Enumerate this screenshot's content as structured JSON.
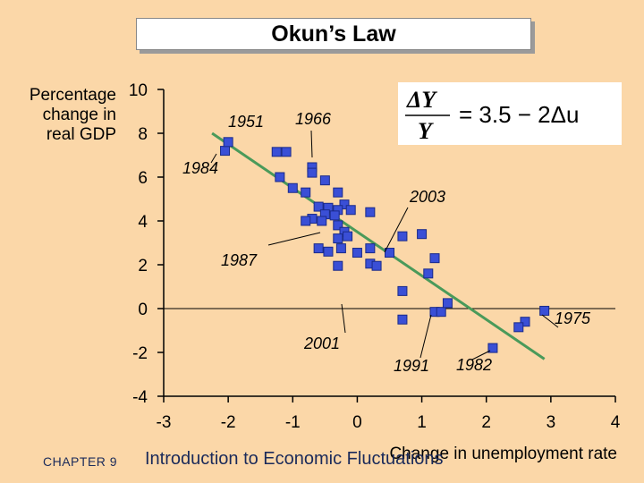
{
  "slide": {
    "title": "Okun’s Law",
    "footer_chapter": "CHAPTER 9",
    "footer_course": "Introduction to Economic Fluctuations",
    "colors": {
      "background": "#fbd7a8",
      "points": "#3a4fd6",
      "fit_line": "#4a9a5a"
    }
  },
  "equation": {
    "lhs_num": "ΔY",
    "lhs_den": "Y",
    "rhs": "= 3.5 − 2Δu"
  },
  "chart_data": {
    "type": "scatter",
    "title": "Okun’s Law",
    "xlabel": "Change in unemployment rate",
    "ylabel_lines": [
      "Percentage",
      "change in",
      "real GDP"
    ],
    "xlim": [
      -3,
      4
    ],
    "ylim": [
      -4,
      10
    ],
    "x_ticks": [
      "-3",
      "-2",
      "-1",
      "0",
      "1",
      "2",
      "3",
      "4"
    ],
    "y_ticks": [
      "10",
      "8",
      "6",
      "4",
      "2",
      "0",
      "-2",
      "-4"
    ],
    "fit_line": {
      "intercept": 3.5,
      "slope": -2,
      "x_range": [
        -2.25,
        2.9
      ]
    },
    "points": [
      [
        -2.05,
        7.2
      ],
      [
        -2.0,
        7.6
      ],
      [
        -1.25,
        7.15
      ],
      [
        -1.1,
        7.15
      ],
      [
        -0.7,
        6.45
      ],
      [
        -0.7,
        6.2
      ],
      [
        -1.2,
        6.0
      ],
      [
        -0.5,
        5.85
      ],
      [
        -1.0,
        5.5
      ],
      [
        -0.8,
        5.3
      ],
      [
        -0.3,
        5.3
      ],
      [
        -0.6,
        4.65
      ],
      [
        -0.2,
        4.75
      ],
      [
        -0.45,
        4.6
      ],
      [
        -0.3,
        4.5
      ],
      [
        -0.1,
        4.5
      ],
      [
        0.2,
        4.4
      ],
      [
        -0.5,
        4.3
      ],
      [
        -0.35,
        4.25
      ],
      [
        -0.7,
        4.1
      ],
      [
        -0.8,
        4.0
      ],
      [
        -0.55,
        4.0
      ],
      [
        -0.3,
        3.8
      ],
      [
        -0.2,
        3.5
      ],
      [
        -0.15,
        3.3
      ],
      [
        -0.3,
        3.2
      ],
      [
        0.7,
        3.3
      ],
      [
        1.0,
        3.4
      ],
      [
        -0.6,
        2.75
      ],
      [
        -0.45,
        2.6
      ],
      [
        -0.25,
        2.75
      ],
      [
        0.0,
        2.55
      ],
      [
        0.2,
        2.75
      ],
      [
        0.5,
        2.55
      ],
      [
        1.2,
        2.3
      ],
      [
        -0.3,
        1.95
      ],
      [
        0.2,
        2.05
      ],
      [
        0.3,
        1.95
      ],
      [
        1.1,
        1.6
      ],
      [
        0.7,
        0.8
      ],
      [
        1.2,
        -0.15
      ],
      [
        1.3,
        -0.15
      ],
      [
        1.4,
        0.25
      ],
      [
        0.7,
        -0.5
      ],
      [
        2.6,
        -0.6
      ],
      [
        2.5,
        -0.85
      ],
      [
        2.9,
        -0.1
      ],
      [
        2.1,
        -1.8
      ]
    ],
    "annotations": [
      {
        "label": "1951",
        "point": [
          -2.0,
          7.6
        ]
      },
      {
        "label": "1966",
        "point": [
          -0.7,
          6.45
        ]
      },
      {
        "label": "1984",
        "point": [
          -2.05,
          7.2
        ]
      },
      {
        "label": "2003",
        "point": [
          0.5,
          2.55
        ]
      },
      {
        "label": "1987",
        "point": [
          -0.6,
          2.75
        ]
      },
      {
        "label": "2001",
        "point": [
          -0.15,
          3.3
        ]
      },
      {
        "label": "1975",
        "point": [
          2.9,
          -0.1
        ]
      },
      {
        "label": "1991",
        "point": [
          1.2,
          -0.15
        ]
      },
      {
        "label": "1982",
        "point": [
          2.1,
          -1.8
        ]
      }
    ],
    "grid": false
  }
}
